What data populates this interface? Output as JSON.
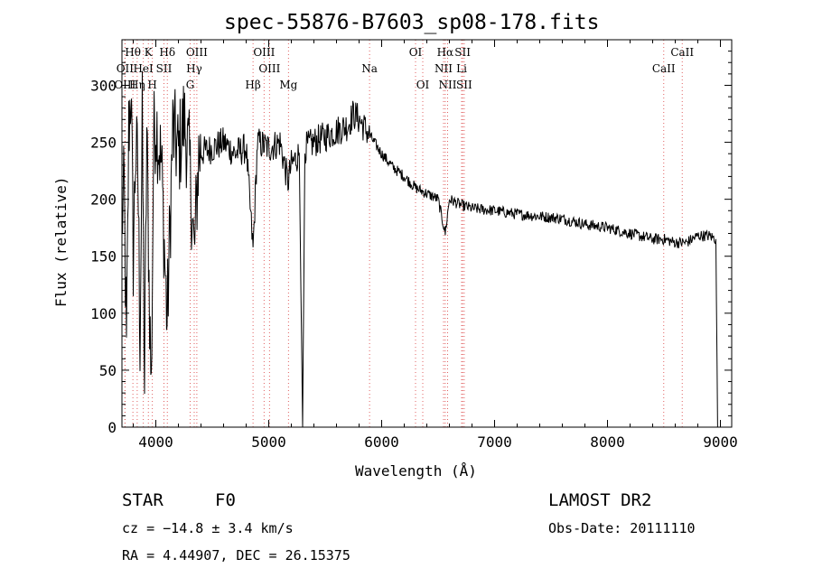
{
  "chart_data": {
    "type": "line",
    "title": "spec-55876-B7603_sp08-178.fits",
    "xlabel": "Wavelength (Å)",
    "ylabel": "Flux (relative)",
    "xlim": [
      3700,
      9100
    ],
    "ylim": [
      0,
      340
    ],
    "x_ticks": [
      4000,
      5000,
      6000,
      7000,
      8000,
      9000
    ],
    "y_ticks": [
      0,
      50,
      100,
      150,
      200,
      250,
      300
    ],
    "grid": false,
    "line_color": "#000000",
    "marker_color": "#e06060",
    "spectrum_anchors": [
      [
        3700,
        180
      ],
      [
        3720,
        210
      ],
      [
        3740,
        60
      ],
      [
        3760,
        260
      ],
      [
        3780,
        300
      ],
      [
        3800,
        150
      ],
      [
        3820,
        240
      ],
      [
        3840,
        230
      ],
      [
        3860,
        80
      ],
      [
        3880,
        270
      ],
      [
        3900,
        35
      ],
      [
        3920,
        260
      ],
      [
        3940,
        130
      ],
      [
        3960,
        30
      ],
      [
        3980,
        250
      ],
      [
        4000,
        270
      ],
      [
        4050,
        230
      ],
      [
        4100,
        90
      ],
      [
        4150,
        260
      ],
      [
        4200,
        240
      ],
      [
        4250,
        270
      ],
      [
        4300,
        230
      ],
      [
        4340,
        150
      ],
      [
        4380,
        240
      ],
      [
        4500,
        245
      ],
      [
        4600,
        250
      ],
      [
        4700,
        240
      ],
      [
        4800,
        245
      ],
      [
        4861,
        155
      ],
      [
        4900,
        250
      ],
      [
        5000,
        245
      ],
      [
        5100,
        250
      ],
      [
        5170,
        215
      ],
      [
        5200,
        230
      ],
      [
        5270,
        240
      ],
      [
        5300,
        0
      ],
      [
        5320,
        245
      ],
      [
        5400,
        250
      ],
      [
        5500,
        255
      ],
      [
        5600,
        260
      ],
      [
        5700,
        265
      ],
      [
        5750,
        275
      ],
      [
        5800,
        270
      ],
      [
        5900,
        255
      ],
      [
        6000,
        240
      ],
      [
        6100,
        228
      ],
      [
        6200,
        220
      ],
      [
        6300,
        210
      ],
      [
        6400,
        205
      ],
      [
        6500,
        200
      ],
      [
        6563,
        170
      ],
      [
        6600,
        200
      ],
      [
        6700,
        195
      ],
      [
        6800,
        192
      ],
      [
        7000,
        190
      ],
      [
        7200,
        187
      ],
      [
        7400,
        185
      ],
      [
        7600,
        183
      ],
      [
        7800,
        178
      ],
      [
        8000,
        175
      ],
      [
        8200,
        170
      ],
      [
        8400,
        165
      ],
      [
        8500,
        165
      ],
      [
        8600,
        162
      ],
      [
        8700,
        162
      ],
      [
        8800,
        168
      ],
      [
        8900,
        168
      ],
      [
        8960,
        165
      ],
      [
        8975,
        0
      ]
    ],
    "line_markers": [
      {
        "name": "Hθ",
        "wavelength": 3797,
        "row": 0
      },
      {
        "name": "K",
        "wavelength": 3934,
        "row": 0
      },
      {
        "name": "Hδ",
        "wavelength": 4102,
        "row": 0
      },
      {
        "name": "OIII",
        "wavelength": 4363,
        "row": 0
      },
      {
        "name": "OIII",
        "wavelength": 4959,
        "row": 0
      },
      {
        "name": "OI",
        "wavelength": 6300,
        "row": 0
      },
      {
        "name": "Hα",
        "wavelength": 6563,
        "row": 0
      },
      {
        "name": "SII",
        "wavelength": 6717,
        "row": 0
      },
      {
        "name": "CaII",
        "wavelength": 8662,
        "row": 0
      },
      {
        "name": "OII",
        "wavelength": 3727,
        "row": 1
      },
      {
        "name": "HeI",
        "wavelength": 3889,
        "row": 1
      },
      {
        "name": "SII",
        "wavelength": 4072,
        "row": 1
      },
      {
        "name": "Hγ",
        "wavelength": 4340,
        "row": 1
      },
      {
        "name": "OIII",
        "wavelength": 5007,
        "row": 1
      },
      {
        "name": "Na",
        "wavelength": 5893,
        "row": 1
      },
      {
        "name": "NII",
        "wavelength": 6548,
        "row": 1
      },
      {
        "name": "Li",
        "wavelength": 6708,
        "row": 1
      },
      {
        "name": "CaII",
        "wavelength": 8498,
        "row": 1
      },
      {
        "name": "OIII",
        "wavelength": 3727,
        "row": 2
      },
      {
        "name": "Hη",
        "wavelength": 3835,
        "row": 2
      },
      {
        "name": "H",
        "wavelength": 3969,
        "row": 2
      },
      {
        "name": "G",
        "wavelength": 4304,
        "row": 2
      },
      {
        "name": "Hβ",
        "wavelength": 4861,
        "row": 2
      },
      {
        "name": "Mg",
        "wavelength": 5175,
        "row": 2
      },
      {
        "name": "OI",
        "wavelength": 6364,
        "row": 2
      },
      {
        "name": "NII",
        "wavelength": 6584,
        "row": 2
      },
      {
        "name": "SII",
        "wavelength": 6731,
        "row": 2
      }
    ]
  },
  "info": {
    "class": "STAR",
    "subclass": "F0",
    "survey": "LAMOST DR2",
    "cz": "cz = −14.8 ± 3.4 km/s",
    "obs_date": "Obs-Date: 20111110",
    "coords": "RA =   4.44907, DEC =  26.15375"
  }
}
